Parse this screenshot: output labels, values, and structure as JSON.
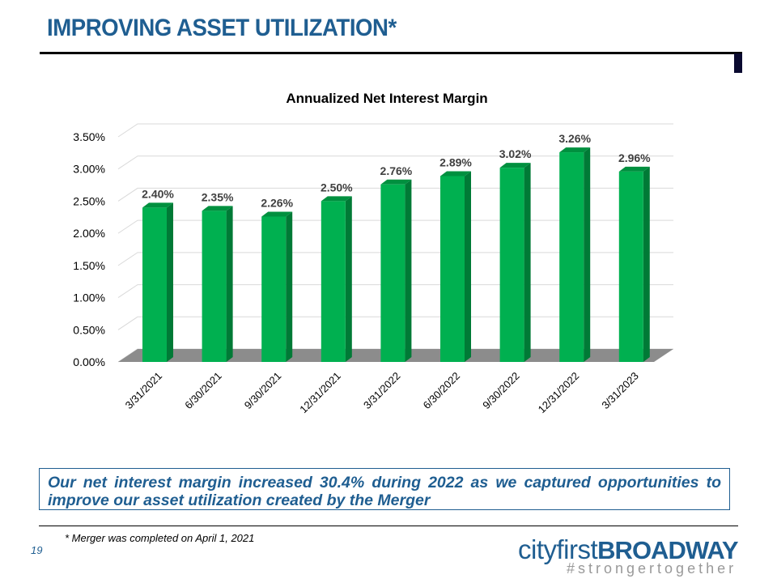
{
  "header": {
    "title": "IMPROVING ASSET UTILIZATION*"
  },
  "chart_data": {
    "type": "bar",
    "title": "Annualized Net Interest Margin",
    "categories": [
      "3/31/2021",
      "6/30/2021",
      "9/30/2021",
      "12/31/2021",
      "3/31/2022",
      "6/30/2022",
      "9/30/2022",
      "12/31/2022",
      "3/31/2023"
    ],
    "values": [
      2.4,
      2.35,
      2.26,
      2.5,
      2.76,
      2.89,
      3.02,
      3.26,
      2.96
    ],
    "data_labels": [
      "2.40%",
      "2.35%",
      "2.26%",
      "2.50%",
      "2.76%",
      "2.89%",
      "3.02%",
      "3.26%",
      "2.96%"
    ],
    "yticks": [
      "0.00%",
      "0.50%",
      "1.00%",
      "1.50%",
      "2.00%",
      "2.50%",
      "3.00%",
      "3.50%"
    ],
    "ylim": [
      0,
      3.5
    ],
    "grid": true,
    "bar_color": "#00b050"
  },
  "callout": "Our net interest margin increased 30.4% during 2022 as we captured opportunities to improve our asset utilization created by the Merger",
  "footnote": "* Merger was completed on April 1, 2021",
  "page_number": "19",
  "logo": {
    "part1": "cityfirst",
    "part2": "BROADWAY",
    "tagline": "#strongertogether"
  }
}
